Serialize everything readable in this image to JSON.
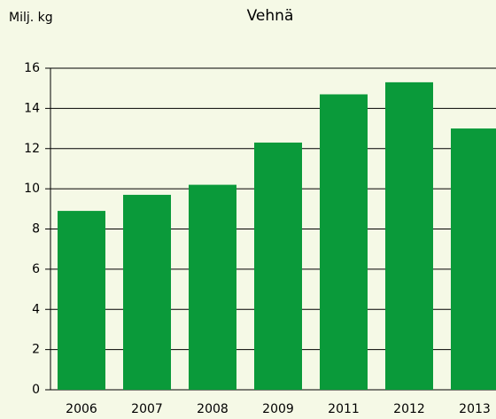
{
  "chart_data": {
    "type": "bar",
    "title": "Vehnä",
    "y_label": "Milj. kg",
    "categories": [
      "2006",
      "2007",
      "2008",
      "2009",
      "2011",
      "2012",
      "2013"
    ],
    "values": [
      8.9,
      9.7,
      10.2,
      12.3,
      14.7,
      15.3,
      13.0
    ],
    "color": "#0a9a3a",
    "ylim": [
      0,
      16
    ],
    "yticks": [
      0,
      2,
      4,
      6,
      8,
      10,
      12,
      14,
      16
    ],
    "grid": true
  }
}
